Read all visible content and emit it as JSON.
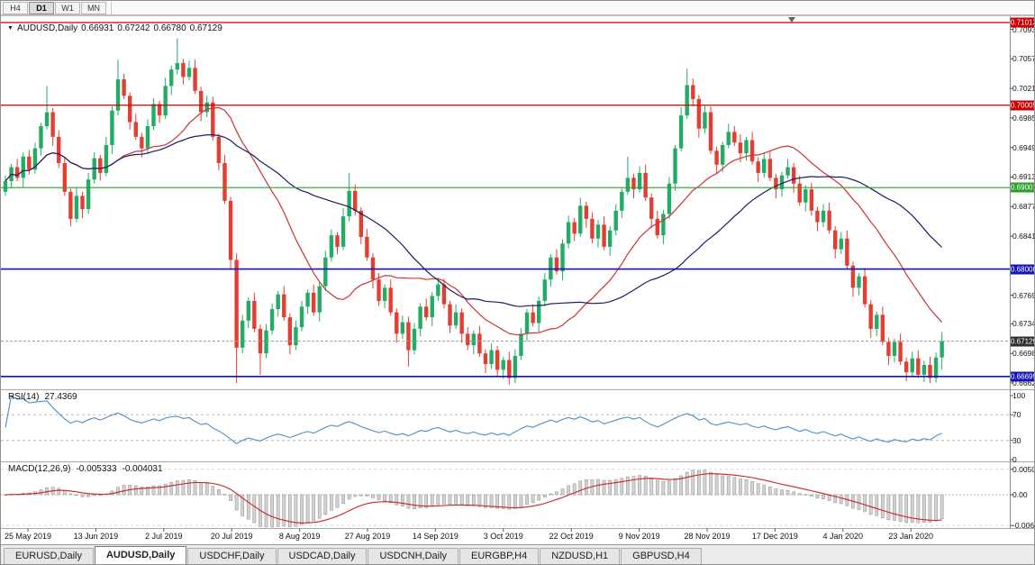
{
  "toolbar": {
    "periods": [
      {
        "label": "H4",
        "active": false
      },
      {
        "label": "D1",
        "active": true
      },
      {
        "label": "W1",
        "active": false
      },
      {
        "label": "MN",
        "active": false
      }
    ]
  },
  "main_chart": {
    "symbol_label": "AUDUSD,Daily",
    "ohlc": {
      "open": "0.66931",
      "high": "0.67242",
      "low": "0.66780",
      "close": "0.67129"
    }
  },
  "rsi_panel": {
    "label": "RSI(14)",
    "value": "27.4369"
  },
  "macd_panel": {
    "label": "MACD(12,26,9)",
    "value_main": "-0.005333",
    "value_signal": "-0.004031"
  },
  "tabs": {
    "items": [
      {
        "label": "EURUSD,Daily",
        "active": false
      },
      {
        "label": "AUDUSD,Daily",
        "active": true
      },
      {
        "label": "USDCHF,Daily",
        "active": false
      },
      {
        "label": "USDCAD,Daily",
        "active": false
      },
      {
        "label": "USDCNH,Daily",
        "active": false
      },
      {
        "label": "EURGBP,H4",
        "active": false
      },
      {
        "label": "NZDUSD,H1",
        "active": false
      },
      {
        "label": "GBPUSD,H4",
        "active": false
      }
    ]
  },
  "colors": {
    "candle_up": "#22ac66",
    "candle_down": "#e43d32",
    "line_red": "#cc0000",
    "line_green": "#2e9e2e",
    "line_blue": "#1414b4",
    "ma_fast": "#cc3333",
    "ma_slow": "#1c1c64",
    "rsi_line": "#4a8fc7",
    "rsi_level_dash": "#b8b8b8",
    "macd_hist_fill": "#d2d2d2",
    "macd_hist_stroke": "#8f8f8f",
    "macd_signal": "#cc2222",
    "tag_current": "#2f2f2f",
    "separator": "#a8a8a8",
    "axis_line": "#8a8a8a"
  },
  "chart_data": {
    "type": "candlestick",
    "symbol": "AUDUSD",
    "timeframe": "Daily",
    "x_axis_dates": [
      "25 May 2019",
      "13 Jun 2019",
      "2 Jul 2019",
      "20 Jul 2019",
      "8 Aug 2019",
      "27 Aug 2019",
      "14 Sep 2019",
      "3 Oct 2019",
      "22 Oct 2019",
      "9 Nov 2019",
      "28 Nov 2019",
      "17 Dec 2019",
      "4 Jan 2020",
      "23 Jan 2020"
    ],
    "y_axis_ticks": [
      {
        "v": 0.7093,
        "label": "0.70930"
      },
      {
        "v": 0.7057,
        "label": "0.70570"
      },
      {
        "v": 0.7021,
        "label": "0.70210"
      },
      {
        "v": 0.6985,
        "label": "0.69850"
      },
      {
        "v": 0.6949,
        "label": "0.69490"
      },
      {
        "v": 0.6913,
        "label": "0.69130"
      },
      {
        "v": 0.6877,
        "label": "0.68770"
      },
      {
        "v": 0.6841,
        "label": "0.68410"
      },
      {
        "v": 0.6769,
        "label": "0.67690"
      },
      {
        "v": 0.6734,
        "label": "0.67340"
      },
      {
        "v": 0.6698,
        "label": "0.66980"
      },
      {
        "v": 0.6662,
        "label": "0.66620"
      }
    ],
    "horizontal_lines": [
      {
        "price": 0.71013,
        "label": "0.71013",
        "color": "#cc0000"
      },
      {
        "price": 0.70005,
        "label": "0.70005",
        "color": "#cc0000"
      },
      {
        "price": 0.69001,
        "label": "0.69001",
        "color": "#2e9e2e"
      },
      {
        "price": 0.68008,
        "label": "0.68008",
        "color": "#1414b4"
      },
      {
        "price": 0.66699,
        "label": "0.66699",
        "color": "#1414b4"
      }
    ],
    "current_price": {
      "value": 0.67129,
      "label": "0.67129"
    },
    "moving_averages": [
      {
        "period": 20,
        "color": "#cc3333"
      },
      {
        "period": 40,
        "color": "#1c1c64"
      }
    ],
    "rsi": {
      "period": 14,
      "value": "27.4369",
      "levels": [
        {
          "v": 100,
          "label": "100"
        },
        {
          "v": 70,
          "label": "70"
        },
        {
          "v": 30,
          "label": "30"
        },
        {
          "v": 0,
          "label": "0"
        }
      ]
    },
    "macd": {
      "fast": 12,
      "slow": 26,
      "signal": 9,
      "value_main": "-0.005333",
      "value_signal": "-0.004031",
      "axis_ticks": [
        {
          "v": 0.00507,
          "label": "0.00507"
        },
        {
          "v": 0,
          "label": "0.00"
        },
        {
          "v": -0.00614,
          "label": "-0.00614"
        }
      ]
    },
    "candles": [
      [
        0.6895,
        0.6915,
        0.689,
        0.6908
      ],
      [
        0.6908,
        0.6929,
        0.6899,
        0.6925
      ],
      [
        0.6925,
        0.6935,
        0.6908,
        0.6912
      ],
      [
        0.6912,
        0.6943,
        0.6901,
        0.6938
      ],
      [
        0.6938,
        0.6946,
        0.6916,
        0.6922
      ],
      [
        0.6922,
        0.6955,
        0.6917,
        0.6948
      ],
      [
        0.6948,
        0.6979,
        0.6939,
        0.6975
      ],
      [
        0.6975,
        0.7024,
        0.6971,
        0.6992
      ],
      [
        0.6992,
        0.6997,
        0.6951,
        0.6962
      ],
      [
        0.6962,
        0.697,
        0.6924,
        0.693
      ],
      [
        0.693,
        0.6937,
        0.689,
        0.6895
      ],
      [
        0.6895,
        0.6899,
        0.6853,
        0.6862
      ],
      [
        0.6862,
        0.69,
        0.6858,
        0.689
      ],
      [
        0.689,
        0.6895,
        0.6863,
        0.6874
      ],
      [
        0.6874,
        0.6918,
        0.6868,
        0.691
      ],
      [
        0.691,
        0.6943,
        0.6905,
        0.6936
      ],
      [
        0.6936,
        0.694,
        0.6909,
        0.6918
      ],
      [
        0.6918,
        0.6962,
        0.6914,
        0.6952
      ],
      [
        0.6952,
        0.6999,
        0.6941,
        0.6994
      ],
      [
        0.6994,
        0.7056,
        0.6988,
        0.7032
      ],
      [
        0.7032,
        0.7039,
        0.7008,
        0.7012
      ],
      [
        0.7012,
        0.7016,
        0.6971,
        0.698
      ],
      [
        0.698,
        0.699,
        0.6958,
        0.6962
      ],
      [
        0.6962,
        0.6967,
        0.6937,
        0.6948
      ],
      [
        0.6948,
        0.6983,
        0.6942,
        0.6975
      ],
      [
        0.6975,
        0.7009,
        0.697,
        0.7002
      ],
      [
        0.7002,
        0.7006,
        0.6979,
        0.6988
      ],
      [
        0.6988,
        0.7034,
        0.6984,
        0.7024
      ],
      [
        0.7024,
        0.7049,
        0.7013,
        0.7044
      ],
      [
        0.7044,
        0.7082,
        0.7038,
        0.7052
      ],
      [
        0.7052,
        0.7057,
        0.7026,
        0.7035
      ],
      [
        0.7035,
        0.7055,
        0.7031,
        0.7046
      ],
      [
        0.7046,
        0.7056,
        0.7014,
        0.7018
      ],
      [
        0.7018,
        0.7023,
        0.6981,
        0.6992
      ],
      [
        0.6992,
        0.7012,
        0.6986,
        0.7004
      ],
      [
        0.7004,
        0.7011,
        0.6957,
        0.6962
      ],
      [
        0.6962,
        0.6966,
        0.6921,
        0.693
      ],
      [
        0.693,
        0.694,
        0.688,
        0.6884
      ],
      [
        0.6884,
        0.6889,
        0.6801,
        0.6812
      ],
      [
        0.6812,
        0.682,
        0.6662,
        0.6705
      ],
      [
        0.6705,
        0.6745,
        0.6698,
        0.6738
      ],
      [
        0.6738,
        0.6766,
        0.6729,
        0.6762
      ],
      [
        0.6762,
        0.6772,
        0.6724,
        0.6728
      ],
      [
        0.6728,
        0.6733,
        0.6672,
        0.6698
      ],
      [
        0.6698,
        0.6734,
        0.6692,
        0.6726
      ],
      [
        0.6726,
        0.6759,
        0.6721,
        0.6752
      ],
      [
        0.6752,
        0.6774,
        0.6743,
        0.677
      ],
      [
        0.677,
        0.678,
        0.6738,
        0.6742
      ],
      [
        0.6742,
        0.6747,
        0.6697,
        0.6708
      ],
      [
        0.6708,
        0.6738,
        0.6702,
        0.673
      ],
      [
        0.673,
        0.6762,
        0.6725,
        0.6755
      ],
      [
        0.6755,
        0.6776,
        0.6746,
        0.6772
      ],
      [
        0.6772,
        0.6782,
        0.6744,
        0.6748
      ],
      [
        0.6748,
        0.6785,
        0.6737,
        0.678
      ],
      [
        0.678,
        0.6823,
        0.6774,
        0.6815
      ],
      [
        0.6815,
        0.6849,
        0.681,
        0.6842
      ],
      [
        0.6842,
        0.6846,
        0.6819,
        0.6828
      ],
      [
        0.6828,
        0.6875,
        0.6824,
        0.6865
      ],
      [
        0.6865,
        0.6918,
        0.6859,
        0.6896
      ],
      [
        0.6896,
        0.6904,
        0.6866,
        0.6872
      ],
      [
        0.6872,
        0.6876,
        0.6831,
        0.684
      ],
      [
        0.684,
        0.685,
        0.6811,
        0.6815
      ],
      [
        0.6815,
        0.682,
        0.6777,
        0.6788
      ],
      [
        0.6788,
        0.6796,
        0.6756,
        0.6762
      ],
      [
        0.6762,
        0.6782,
        0.6753,
        0.6778
      ],
      [
        0.6778,
        0.6788,
        0.6744,
        0.6748
      ],
      [
        0.6748,
        0.6753,
        0.6711,
        0.6722
      ],
      [
        0.6722,
        0.6744,
        0.6716,
        0.6736
      ],
      [
        0.6736,
        0.6743,
        0.6682,
        0.6702
      ],
      [
        0.6702,
        0.6735,
        0.6697,
        0.6728
      ],
      [
        0.6728,
        0.6759,
        0.6719,
        0.6755
      ],
      [
        0.6755,
        0.6765,
        0.6738,
        0.6742
      ],
      [
        0.6742,
        0.6773,
        0.6731,
        0.6768
      ],
      [
        0.6768,
        0.679,
        0.6762,
        0.6782
      ],
      [
        0.6782,
        0.6789,
        0.6753,
        0.6758
      ],
      [
        0.6758,
        0.6762,
        0.6723,
        0.6732
      ],
      [
        0.6732,
        0.6758,
        0.6728,
        0.6748
      ],
      [
        0.6748,
        0.6753,
        0.6711,
        0.6722
      ],
      [
        0.6722,
        0.673,
        0.6702,
        0.6708
      ],
      [
        0.6708,
        0.6726,
        0.6697,
        0.6722
      ],
      [
        0.6722,
        0.6732,
        0.6694,
        0.6698
      ],
      [
        0.6698,
        0.6703,
        0.6674,
        0.6685
      ],
      [
        0.6685,
        0.671,
        0.6679,
        0.6702
      ],
      [
        0.6702,
        0.6707,
        0.6669,
        0.6678
      ],
      [
        0.6678,
        0.6694,
        0.6667,
        0.669
      ],
      [
        0.669,
        0.67,
        0.666,
        0.6668
      ],
      [
        0.6668,
        0.6703,
        0.6662,
        0.6695
      ],
      [
        0.6695,
        0.6729,
        0.669,
        0.6722
      ],
      [
        0.6722,
        0.6752,
        0.6713,
        0.6748
      ],
      [
        0.6748,
        0.6758,
        0.6731,
        0.6735
      ],
      [
        0.6735,
        0.6767,
        0.6724,
        0.6762
      ],
      [
        0.6762,
        0.6796,
        0.6756,
        0.6788
      ],
      [
        0.6788,
        0.6819,
        0.6779,
        0.6815
      ],
      [
        0.6815,
        0.6825,
        0.6794,
        0.6798
      ],
      [
        0.6798,
        0.6837,
        0.6787,
        0.6832
      ],
      [
        0.6832,
        0.6866,
        0.6826,
        0.6858
      ],
      [
        0.6858,
        0.6863,
        0.6835,
        0.6844
      ],
      [
        0.6844,
        0.6888,
        0.684,
        0.6878
      ],
      [
        0.6878,
        0.6883,
        0.6851,
        0.6862
      ],
      [
        0.6862,
        0.687,
        0.6832,
        0.6838
      ],
      [
        0.6838,
        0.6861,
        0.6827,
        0.6855
      ],
      [
        0.6855,
        0.6865,
        0.6824,
        0.6828
      ],
      [
        0.6828,
        0.6853,
        0.6817,
        0.6848
      ],
      [
        0.6848,
        0.688,
        0.6842,
        0.6872
      ],
      [
        0.6872,
        0.6899,
        0.6863,
        0.6895
      ],
      [
        0.6895,
        0.6938,
        0.6891,
        0.6912
      ],
      [
        0.6912,
        0.6917,
        0.6887,
        0.6898
      ],
      [
        0.6898,
        0.6926,
        0.6894,
        0.6918
      ],
      [
        0.6918,
        0.6928,
        0.6884,
        0.6888
      ],
      [
        0.6888,
        0.6893,
        0.6851,
        0.6862
      ],
      [
        0.6862,
        0.6872,
        0.6838,
        0.6842
      ],
      [
        0.6842,
        0.6873,
        0.6831,
        0.6868
      ],
      [
        0.6868,
        0.6913,
        0.6862,
        0.6905
      ],
      [
        0.6905,
        0.6952,
        0.6896,
        0.6948
      ],
      [
        0.6948,
        0.6998,
        0.6944,
        0.6988
      ],
      [
        0.6988,
        0.7045,
        0.6984,
        0.7025
      ],
      [
        0.7025,
        0.7033,
        0.6999,
        0.7008
      ],
      [
        0.7008,
        0.7013,
        0.6961,
        0.6972
      ],
      [
        0.6972,
        0.7,
        0.6966,
        0.6992
      ],
      [
        0.6992,
        0.6999,
        0.6941,
        0.6945
      ],
      [
        0.6945,
        0.695,
        0.6917,
        0.6928
      ],
      [
        0.6928,
        0.6956,
        0.6919,
        0.6952
      ],
      [
        0.6952,
        0.6978,
        0.6948,
        0.6968
      ],
      [
        0.6968,
        0.6975,
        0.6951,
        0.6955
      ],
      [
        0.6955,
        0.6965,
        0.6931,
        0.6942
      ],
      [
        0.6942,
        0.6962,
        0.6933,
        0.6958
      ],
      [
        0.6958,
        0.6968,
        0.6928,
        0.6932
      ],
      [
        0.6932,
        0.6937,
        0.6907,
        0.6918
      ],
      [
        0.6918,
        0.6943,
        0.6912,
        0.6935
      ],
      [
        0.6935,
        0.6945,
        0.6908,
        0.6912
      ],
      [
        0.6912,
        0.6917,
        0.6887,
        0.6898
      ],
      [
        0.6898,
        0.6919,
        0.6889,
        0.6915
      ],
      [
        0.6915,
        0.6935,
        0.6911,
        0.6925
      ],
      [
        0.6925,
        0.693,
        0.6894,
        0.6905
      ],
      [
        0.6905,
        0.6915,
        0.6878,
        0.6882
      ],
      [
        0.6882,
        0.6903,
        0.6871,
        0.6898
      ],
      [
        0.6898,
        0.6906,
        0.6866,
        0.6872
      ],
      [
        0.6872,
        0.6877,
        0.6847,
        0.6858
      ],
      [
        0.6858,
        0.688,
        0.6852,
        0.6872
      ],
      [
        0.6872,
        0.6882,
        0.6844,
        0.6848
      ],
      [
        0.6848,
        0.6853,
        0.6814,
        0.6825
      ],
      [
        0.6825,
        0.6846,
        0.6819,
        0.6838
      ],
      [
        0.6838,
        0.6848,
        0.6801,
        0.6805
      ],
      [
        0.6805,
        0.681,
        0.6767,
        0.6778
      ],
      [
        0.6778,
        0.6796,
        0.6769,
        0.6792
      ],
      [
        0.6792,
        0.6802,
        0.6754,
        0.6758
      ],
      [
        0.6758,
        0.6763,
        0.6717,
        0.6728
      ],
      [
        0.6728,
        0.6749,
        0.6719,
        0.6745
      ],
      [
        0.6745,
        0.6755,
        0.6708,
        0.6712
      ],
      [
        0.6712,
        0.6717,
        0.6684,
        0.6695
      ],
      [
        0.6695,
        0.6716,
        0.6687,
        0.6712
      ],
      [
        0.6712,
        0.6722,
        0.6684,
        0.6688
      ],
      [
        0.6688,
        0.6693,
        0.6664,
        0.6675
      ],
      [
        0.6675,
        0.67,
        0.667,
        0.6692
      ],
      [
        0.6692,
        0.6702,
        0.6668,
        0.6672
      ],
      [
        0.6672,
        0.6689,
        0.6663,
        0.6684
      ],
      [
        0.6684,
        0.6694,
        0.6662,
        0.6668
      ],
      [
        0.6668,
        0.6699,
        0.66625,
        0.6693
      ],
      [
        0.66931,
        0.67242,
        0.6678,
        0.67129
      ]
    ]
  }
}
